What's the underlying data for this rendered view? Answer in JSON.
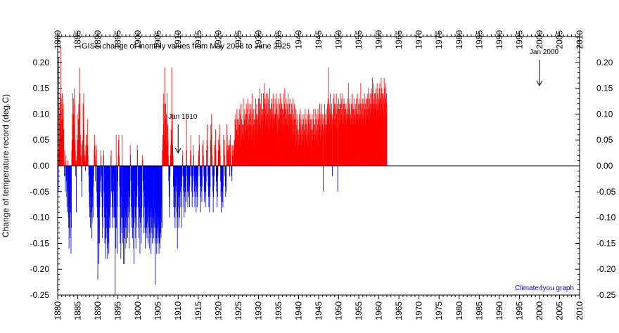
{
  "chart_data": {
    "type": "bar",
    "title": "GISS change of monthly values from May 2008 to June 2025",
    "xlabel": "",
    "ylabel": "Change of temperature record (deg.C)",
    "xlim": [
      1880,
      2010
    ],
    "ylim": [
      -0.25,
      0.25
    ],
    "x_major_ticks": [
      "1880",
      "1885",
      "1890",
      "1895",
      "1900",
      "1905",
      "1910",
      "1915",
      "1920",
      "1925",
      "1930",
      "1935",
      "1940",
      "1945",
      "1950",
      "1955",
      "1960",
      "1965",
      "1970",
      "1975",
      "1980",
      "1985",
      "1990",
      "1995",
      "2000",
      "2005",
      "2010"
    ],
    "y_major_ticks": [
      "0.20",
      "0.15",
      "0.10",
      "0.05",
      "0.00",
      "-0.05",
      "-0.10",
      "-0.15",
      "-0.20",
      "-0.25"
    ],
    "grid": false,
    "positive_color": "#ff0000",
    "negative_color": "#0000ff",
    "annotations": [
      {
        "text": "Jan 1910",
        "x": 1910.0,
        "y_from": 0.08,
        "y_to": 0.025
      },
      {
        "text": "Jan 2000",
        "x": 2000.0,
        "y_from": 0.205,
        "y_to": 0.155
      }
    ],
    "credit": "Climate4you graph",
    "credit_color": "#0000cc",
    "series": [
      {
        "values_note_free": true,
        "x_start": 1880.0,
        "x_step_years": 0.0833333,
        "values": [
          0.03,
          -0.05,
          0.21,
          0.12,
          0.05,
          0.1,
          0.14,
          0.08,
          0.23,
          0.12,
          0.13,
          0.06,
          0.09,
          0.14,
          0.11,
          0.09,
          0.12,
          0.07,
          0.0,
          -0.02,
          0.03,
          0.01,
          -0.05,
          -0.02,
          0.02,
          -0.03,
          -0.06,
          -0.08,
          -0.09,
          -0.05,
          0.01,
          -0.1,
          -0.12,
          -0.16,
          -0.08,
          -0.12,
          -0.14,
          -0.04,
          -0.09,
          -0.17,
          -0.12,
          0.03,
          0.05,
          0.1,
          0.14,
          0.08,
          0.13,
          0.1,
          0.08,
          0.15,
          0.12,
          0.05,
          0.03,
          -0.02,
          0.01,
          -0.09,
          0.02,
          0.06,
          0.1,
          0.05,
          0.03,
          0.09,
          0.12,
          0.05,
          0.19,
          0.1,
          0.14,
          0.06,
          0.02,
          0.04,
          -0.03,
          -0.06,
          0.02,
          0.05,
          0.04,
          0.12,
          0.08,
          0.14,
          0.07,
          0.03,
          0.02,
          0.01,
          -0.01,
          0.04,
          0.03,
          0.06,
          0.02,
          0.06,
          0.09,
          0.04,
          0.02,
          0.0,
          -0.02,
          -0.05,
          -0.08,
          -0.1,
          -0.06,
          -0.12,
          -0.09,
          -0.04,
          -0.1,
          -0.14,
          -0.11,
          -0.06,
          -0.08,
          -0.1,
          -0.04,
          -0.02,
          0.03,
          0.06,
          0.04,
          0.02,
          -0.03,
          0.01,
          0.04,
          0.03,
          -0.05,
          -0.08,
          -0.1,
          -0.22,
          -0.15,
          -0.1,
          -0.19,
          -0.12,
          -0.15,
          -0.08,
          -0.05,
          -0.03,
          0.03,
          0.02,
          -0.02,
          -0.06,
          -0.1,
          -0.14,
          -0.12,
          -0.08,
          0.02,
          0.03,
          -0.05,
          -0.1,
          -0.15,
          -0.12,
          -0.18,
          -0.1,
          -0.14,
          -0.08,
          -0.12,
          -0.16,
          -0.18,
          -0.13,
          -0.09,
          -0.15,
          -0.17,
          -0.12,
          -0.1,
          -0.06,
          -0.12,
          -0.08,
          0.02,
          0.03,
          -0.05,
          -0.04,
          -0.08,
          -0.12,
          -0.06,
          -0.1,
          -0.02,
          -0.05,
          -0.1,
          -0.08,
          -0.12,
          -0.25,
          -0.1,
          -0.16,
          0.06,
          -0.12,
          -0.05,
          -0.17,
          -0.08,
          -0.03,
          0.02,
          0.05,
          0.06,
          0.02,
          -0.04,
          -0.08,
          -0.15,
          -0.12,
          -0.18,
          -0.1,
          -0.06,
          -0.13,
          0.06,
          -0.1,
          -0.15,
          -0.12,
          -0.19,
          -0.08,
          -0.14,
          -0.1,
          -0.19,
          -0.16,
          -0.09,
          -0.12,
          -0.15,
          -0.1,
          -0.06,
          -0.12,
          -0.14,
          -0.08,
          -0.05,
          -0.1,
          -0.13,
          -0.16,
          -0.09,
          -0.06,
          0.04,
          0.02,
          -0.03,
          -0.08,
          -0.12,
          -0.06,
          -0.1,
          -0.14,
          -0.09,
          -0.12,
          -0.16,
          -0.19,
          -0.11,
          -0.08,
          -0.05,
          -0.1,
          -0.14,
          -0.16,
          -0.12,
          -0.08,
          -0.06,
          0.04,
          0.03,
          -0.04,
          -0.08,
          -0.12,
          -0.14,
          -0.09,
          -0.1,
          -0.17,
          -0.11,
          -0.06,
          -0.12,
          -0.15,
          -0.1,
          -0.08,
          0.02,
          0.01,
          -0.03,
          -0.05,
          -0.1,
          -0.13,
          -0.08,
          -0.06,
          -0.12,
          -0.16,
          -0.1,
          -0.13,
          -0.09,
          -0.12,
          -0.14,
          -0.08,
          -0.11,
          -0.15,
          -0.1,
          -0.07,
          -0.12,
          -0.16,
          -0.13,
          -0.09,
          -0.1,
          -0.14,
          -0.17,
          -0.12,
          -0.08,
          -0.13,
          -0.15,
          -0.1,
          -0.06,
          -0.12,
          -0.14,
          -0.11,
          -0.08,
          -0.12,
          -0.15,
          -0.23,
          -0.12,
          -0.09,
          -0.14,
          -0.17,
          -0.13,
          -0.1,
          -0.15,
          -0.12,
          -0.1,
          -0.14,
          -0.17,
          -0.15,
          -0.12,
          -0.16,
          -0.13,
          -0.1,
          -0.14,
          -0.11,
          -0.08,
          -0.12,
          0.03,
          0.06,
          0.04,
          0.14,
          0.08,
          0.12,
          0.05,
          0.19,
          0.06,
          0.09,
          0.12,
          0.04,
          0.1,
          0.07,
          0.14,
          0.04,
          0.08,
          0.05,
          0.02,
          -0.03,
          -0.06,
          -0.1,
          -0.08,
          -0.02,
          0.02,
          0.04,
          0.07,
          0.05,
          0.19,
          0.08,
          0.1,
          0.04,
          0.02,
          -0.04,
          -0.08,
          -0.05,
          -0.1,
          -0.06,
          -0.12,
          -0.08,
          -0.04,
          -0.02,
          -0.05,
          -0.09,
          -0.12,
          -0.16,
          -0.1,
          -0.06,
          -0.08,
          -0.12,
          -0.04,
          -0.06,
          -0.1,
          -0.03,
          -0.05,
          -0.08,
          -0.06,
          -0.12,
          -0.04,
          -0.02,
          0.02,
          0.03,
          -0.02,
          -0.05,
          -0.08,
          -0.1,
          -0.06,
          -0.04,
          -0.09,
          -0.05,
          -0.03,
          -0.07,
          0.1,
          0.03,
          -0.02,
          -0.05,
          -0.08,
          -0.04,
          -0.06,
          -0.03,
          -0.05,
          -0.08,
          -0.04,
          -0.02,
          0.03,
          0.06,
          0.02,
          -0.02,
          -0.05,
          -0.08,
          -0.04,
          -0.06,
          -0.02,
          0.04,
          0.02,
          -0.03,
          -0.05,
          -0.08,
          -0.04,
          -0.02,
          -0.06,
          -0.09,
          -0.05,
          -0.03,
          -0.06,
          -0.08,
          -0.04,
          -0.02,
          0.02,
          0.03,
          0.06,
          0.04,
          -0.02,
          -0.04,
          -0.06,
          -0.09,
          -0.05,
          -0.03,
          -0.07,
          -0.04,
          0.04,
          0.02,
          0.05,
          0.02,
          -0.02,
          -0.05,
          -0.07,
          -0.04,
          -0.06,
          -0.08,
          -0.05,
          -0.03,
          0.03,
          0.05,
          0.08,
          0.04,
          -0.02,
          -0.04,
          -0.06,
          -0.08,
          -0.05,
          -0.09,
          -0.06,
          -0.04,
          0.05,
          0.08,
          0.06,
          0.1,
          0.04,
          0.02,
          -0.02,
          -0.05,
          -0.09,
          -0.06,
          -0.04,
          -0.02,
          0.04,
          0.02,
          0.05,
          0.07,
          0.03,
          -0.03,
          -0.05,
          -0.08,
          -0.04,
          -0.06,
          -0.02,
          0.03,
          0.05,
          0.03,
          0.06,
          0.08,
          0.04,
          0.02,
          -0.03,
          -0.06,
          -0.09,
          -0.05,
          -0.03,
          -0.07,
          -0.05,
          -0.08,
          -0.04,
          0.06,
          0.03,
          0.05,
          0.02,
          -0.02,
          -0.04,
          -0.06,
          -0.03,
          -0.05,
          0.04,
          0.08,
          0.06,
          0.03,
          0.02,
          0.04,
          0.01,
          0.03,
          0.05,
          -0.02,
          0.04,
          0.06,
          0.02,
          0.04,
          -0.02,
          -0.01,
          -0.03,
          0.02,
          0.04,
          0.01,
          0.03,
          0.02,
          0.04,
          0.05,
          0.05,
          0.09,
          0.06,
          0.1,
          0.08,
          0.04,
          0.07,
          0.11,
          0.06,
          0.09,
          0.05,
          0.08,
          0.09,
          0.06,
          0.11,
          0.08,
          0.04,
          0.1,
          0.07,
          0.12,
          0.05,
          0.09,
          0.06,
          0.08,
          0.06,
          0.1,
          0.13,
          0.08,
          0.05,
          0.09,
          0.11,
          0.07,
          0.1,
          0.06,
          0.09,
          0.12,
          0.1,
          0.07,
          0.11,
          0.13,
          0.08,
          0.05,
          0.09,
          0.12,
          0.1,
          0.06,
          0.08,
          0.11,
          0.08,
          0.12,
          0.05,
          0.09,
          0.14,
          0.07,
          0.1,
          0.06,
          0.11,
          0.08,
          0.04,
          0.09,
          0.09,
          0.07,
          0.11,
          0.13,
          0.08,
          0.1,
          0.12,
          0.07,
          0.09,
          0.06,
          0.1,
          0.13,
          0.1,
          0.13,
          0.08,
          0.15,
          0.11,
          0.07,
          0.12,
          0.09,
          0.14,
          0.1,
          0.06,
          0.11,
          0.07,
          0.11,
          0.14,
          0.09,
          0.12,
          0.16,
          0.1,
          0.13,
          0.08,
          0.11,
          0.14,
          0.09,
          0.12,
          0.09,
          0.14,
          0.1,
          0.07,
          0.13,
          0.11,
          0.08,
          0.12,
          0.15,
          0.09,
          0.11,
          0.08,
          0.12,
          0.09,
          0.13,
          0.1,
          0.07,
          0.11,
          0.14,
          0.09,
          0.12,
          0.08,
          0.1,
          0.09,
          0.13,
          0.1,
          0.07,
          0.11,
          0.14,
          0.08,
          0.12,
          0.1,
          0.06,
          0.09,
          0.13,
          0.1,
          0.07,
          0.12,
          0.09,
          0.14,
          0.11,
          0.08,
          0.13,
          0.1,
          0.12,
          0.09,
          0.11,
          0.08,
          0.11,
          0.14,
          0.1,
          0.07,
          0.12,
          0.15,
          0.09,
          0.11,
          0.08,
          0.13,
          0.1,
          0.09,
          0.12,
          0.08,
          0.11,
          0.14,
          0.1,
          0.07,
          0.12,
          0.09,
          0.13,
          0.1,
          0.08,
          0.1,
          0.07,
          0.12,
          0.09,
          0.05,
          0.11,
          0.13,
          0.08,
          0.1,
          0.06,
          0.09,
          0.12,
          0.06,
          0.09,
          0.04,
          0.11,
          0.08,
          0.05,
          0.1,
          0.07,
          0.03,
          0.09,
          0.06,
          0.04,
          0.07,
          0.1,
          0.05,
          0.08,
          0.11,
          0.06,
          0.09,
          0.04,
          0.07,
          0.1,
          0.05,
          0.08,
          0.05,
          0.09,
          0.06,
          0.1,
          0.07,
          0.04,
          0.08,
          0.11,
          0.06,
          0.09,
          0.05,
          0.08,
          0.06,
          0.1,
          0.07,
          0.04,
          0.09,
          0.11,
          0.06,
          0.08,
          0.05,
          0.1,
          0.07,
          0.09,
          0.07,
          0.04,
          0.09,
          0.06,
          0.1,
          0.07,
          0.05,
          0.09,
          0.11,
          0.06,
          0.08,
          0.05,
          0.08,
          0.11,
          0.06,
          0.09,
          0.05,
          0.1,
          0.07,
          0.04,
          0.08,
          0.11,
          0.06,
          0.09,
          0.1,
          0.07,
          0.12,
          0.08,
          0.05,
          0.1,
          0.06,
          0.09,
          0.12,
          0.07,
          0.1,
          0.08,
          0.07,
          -0.05,
          0.1,
          0.06,
          0.09,
          0.12,
          0.08,
          0.05,
          0.1,
          0.07,
          0.11,
          0.08,
          0.08,
          0.12,
          0.09,
          0.13,
          0.1,
          0.19,
          0.09,
          0.12,
          0.08,
          0.11,
          0.14,
          0.1,
          0.1,
          0.07,
          0.12,
          0.09,
          -0.02,
          0.1,
          0.13,
          0.08,
          0.11,
          0.14,
          0.09,
          0.12,
          0.09,
          0.12,
          0.08,
          0.11,
          0.14,
          0.1,
          0.07,
          0.12,
          -0.05,
          0.11,
          0.09,
          0.13,
          0.11,
          0.08,
          0.12,
          0.1,
          0.14,
          0.09,
          0.12,
          0.1,
          0.13,
          0.09,
          0.11,
          0.14,
          0.08,
          0.12,
          0.09,
          0.13,
          0.1,
          0.12,
          0.08,
          0.11,
          0.09,
          0.12,
          0.1,
          0.08,
          0.1,
          0.13,
          0.09,
          0.11,
          0.16,
          0.1,
          0.12,
          0.09,
          0.11,
          0.13,
          0.08,
          0.1,
          0.09,
          0.12,
          0.08,
          0.14,
          0.11,
          0.09,
          0.12,
          0.08,
          0.11,
          0.13,
          0.09,
          0.1,
          0.11,
          0.08,
          0.12,
          0.1,
          0.13,
          0.09,
          0.11,
          0.14,
          0.1,
          0.08,
          0.12,
          0.09,
          0.1,
          0.13,
          0.09,
          0.12,
          0.1,
          0.16,
          0.11,
          0.08,
          0.12,
          0.1,
          0.13,
          0.09,
          0.12,
          0.09,
          0.13,
          0.1,
          0.14,
          0.11,
          0.08,
          0.12,
          0.1,
          0.13,
          0.09,
          0.11,
          0.13,
          0.1,
          0.14,
          0.11,
          0.15,
          0.12,
          0.09,
          0.13,
          0.11,
          0.14,
          0.1,
          0.12,
          0.12,
          0.15,
          0.11,
          0.14,
          0.17,
          0.12,
          0.1,
          0.13,
          0.16,
          0.11,
          0.14,
          0.12,
          0.14,
          0.11,
          0.15,
          0.12,
          0.09,
          0.13,
          0.16,
          0.11,
          0.14,
          0.12,
          0.1,
          0.13,
          0.15,
          0.12,
          0.16,
          0.13,
          0.1,
          0.14,
          0.17,
          0.12,
          0.15,
          0.11,
          0.14,
          0.13,
          0.14,
          0.1,
          0.13,
          0.17,
          0.12,
          0.15,
          0.11,
          0.16,
          0.13,
          0.1,
          0.14,
          0.12
        ]
      }
    ]
  }
}
